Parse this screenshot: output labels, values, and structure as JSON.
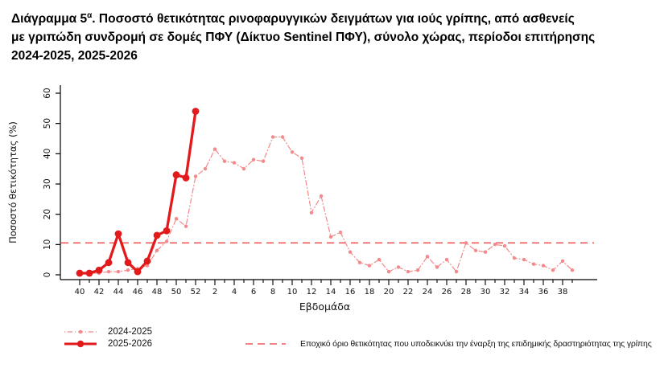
{
  "title": {
    "prefix": "Διάγραμμα 5",
    "sup": "α",
    "rest": ". Ποσοστό θετικότητας ρινοφαρυγγικών δειγμάτων για ιούς γρίπης, από ασθενείς\nμε γριπώδη συνδρομή σε δομές ΠΦΥ (Δίκτυο Sentinel ΠΦΥ), σύνολο χώρας, περίοδοι επιτήρησης\n2024-2025, 2025-2026"
  },
  "chart_data": {
    "type": "line",
    "xlabel": "Εβδομάδα",
    "ylabel": "Ποσοστό θετικότητας (%)",
    "ylim": [
      0,
      60
    ],
    "yticks": [
      0,
      10,
      20,
      30,
      40,
      50,
      60
    ],
    "x_weeks": [
      40,
      41,
      42,
      43,
      44,
      45,
      46,
      47,
      48,
      49,
      50,
      51,
      52,
      1,
      2,
      3,
      4,
      5,
      6,
      7,
      8,
      9,
      10,
      11,
      12,
      13,
      14,
      15,
      16,
      17,
      18,
      19,
      20,
      21,
      22,
      23,
      24,
      25,
      26,
      27,
      28,
      29,
      30,
      31,
      32,
      33,
      34,
      35,
      36,
      37,
      38,
      39
    ],
    "x_tick_labels": [
      "40",
      "42",
      "44",
      "46",
      "48",
      "50",
      "52",
      "2",
      "4",
      "6",
      "8",
      "10",
      "12",
      "14",
      "16",
      "18",
      "20",
      "22",
      "24",
      "26",
      "28",
      "30",
      "32",
      "34",
      "36",
      "38"
    ],
    "grid": false,
    "legend_position": "bottom-left",
    "threshold": {
      "value": 10,
      "color": "#ef5a5a",
      "style": "dashed"
    },
    "series": [
      {
        "name": "2024-2025",
        "color": "#f4898b",
        "style": "dashdot-thin",
        "values": [
          0,
          0,
          0,
          0.5,
          0.5,
          1,
          1.5,
          2.5,
          7.5,
          10.5,
          18,
          15.5,
          32,
          34.5,
          41,
          37,
          36.5,
          34.5,
          37.5,
          37,
          45,
          45,
          40,
          38,
          20,
          25.5,
          12,
          13.5,
          7,
          3.5,
          2.5,
          4.5,
          0.5,
          2,
          0.5,
          1,
          5.5,
          2,
          4.5,
          0.5,
          10,
          7.5,
          7,
          9.5,
          9,
          5,
          4.5,
          3,
          2.5,
          1,
          4,
          1
        ]
      },
      {
        "name": "2025-2026",
        "color": "#e31a1c",
        "style": "solid-bold",
        "values": [
          0,
          0,
          1,
          3.5,
          13,
          3.5,
          0.5,
          4,
          12.5,
          14,
          32.5,
          31.5,
          53.5
        ]
      }
    ]
  },
  "legend": {
    "threshold_label": "Εποχικό όριο θετικότητας που υποδεικνύει την έναρξη της επιδημικής δραστηριότητας της γρίπης"
  }
}
